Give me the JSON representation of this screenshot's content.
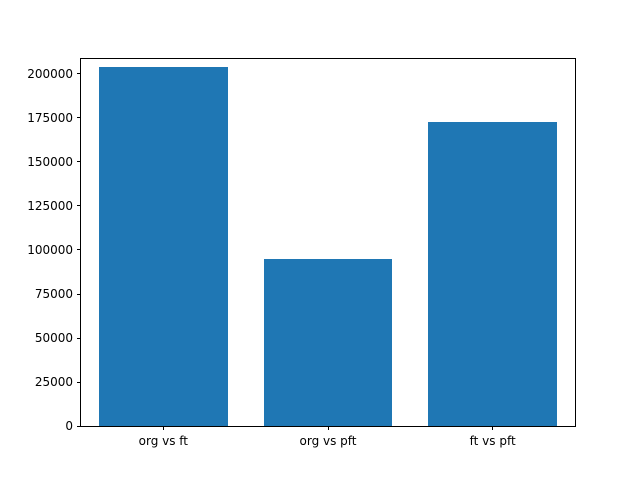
{
  "chart_data": {
    "type": "bar",
    "title": "",
    "xlabel": "",
    "ylabel": "",
    "categories": [
      "org vs ft",
      "org vs pft",
      "ft vs pft"
    ],
    "values": [
      204000,
      95000,
      173000
    ],
    "ylim": [
      0,
      208500
    ],
    "yticks": [
      0,
      25000,
      50000,
      75000,
      100000,
      125000,
      150000,
      175000,
      200000
    ],
    "bar_color": "#1f77b4",
    "grid": false,
    "legend_position": "none"
  }
}
